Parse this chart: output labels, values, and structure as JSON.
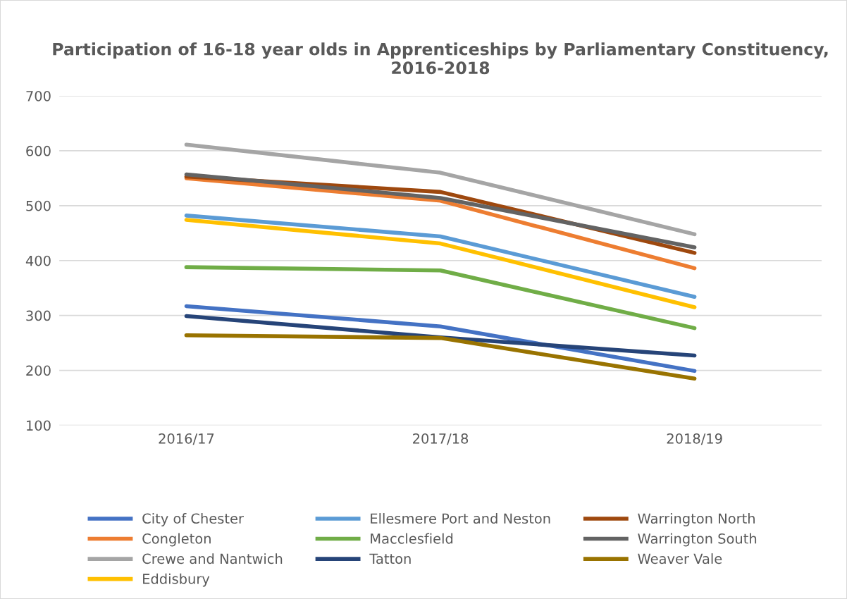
{
  "chart_data": {
    "type": "line",
    "title": "Participation of 16-18 year olds in Apprenticeships by Parliamentary Constituency, 2016-2018",
    "categories": [
      "2016/17",
      "2017/18",
      "2018/19"
    ],
    "series": [
      {
        "name": "City of Chester",
        "color": "#4472c4",
        "values": [
          317,
          280,
          199
        ]
      },
      {
        "name": "Congleton",
        "color": "#ed7d31",
        "values": [
          550,
          509,
          386
        ]
      },
      {
        "name": "Crewe and Nantwich",
        "color": "#a5a5a5",
        "values": [
          611,
          560,
          448
        ]
      },
      {
        "name": "Eddisbury",
        "color": "#ffc000",
        "values": [
          474,
          431,
          315
        ]
      },
      {
        "name": "Ellesmere Port and Neston",
        "color": "#5b9bd5",
        "values": [
          482,
          444,
          334
        ]
      },
      {
        "name": "Macclesfield",
        "color": "#70ad47",
        "values": [
          388,
          382,
          277
        ]
      },
      {
        "name": "Tatton",
        "color": "#264478",
        "values": [
          299,
          260,
          227
        ]
      },
      {
        "name": "Warrington North",
        "color": "#9e480e",
        "values": [
          553,
          525,
          414
        ]
      },
      {
        "name": "Warrington South",
        "color": "#636363",
        "values": [
          557,
          514,
          424
        ]
      },
      {
        "name": "Weaver Vale",
        "color": "#997300",
        "values": [
          264,
          259,
          185
        ]
      }
    ],
    "ylim": [
      100,
      700
    ],
    "yticks": [
      100,
      200,
      300,
      400,
      500,
      600,
      700
    ],
    "grid": "y",
    "legend": "bottom",
    "marker": "none",
    "line_style": "solid"
  }
}
